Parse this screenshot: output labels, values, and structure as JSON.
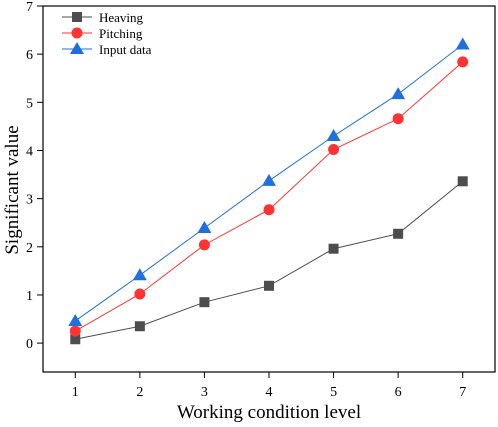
{
  "chart_data": {
    "type": "line",
    "x": [
      1,
      2,
      3,
      4,
      5,
      6,
      7
    ],
    "series": [
      {
        "name": "Heaving",
        "values": [
          0.08,
          0.35,
          0.85,
          1.19,
          1.96,
          2.27,
          3.36
        ],
        "color": "#4d4d4d",
        "marker": "square"
      },
      {
        "name": "Pitching",
        "values": [
          0.25,
          1.02,
          2.04,
          2.77,
          4.02,
          4.66,
          5.84
        ],
        "color": "#ff3333",
        "marker": "circle"
      },
      {
        "name": "Input data",
        "values": [
          0.46,
          1.41,
          2.39,
          3.37,
          4.3,
          5.17,
          6.2
        ],
        "color": "#1f6fdf",
        "marker": "triangle"
      }
    ],
    "xlabel": "Working condition level",
    "ylabel": "Significant value",
    "xlim": [
      0.5,
      7.5
    ],
    "ylim": [
      -0.6,
      7
    ],
    "xticks": [
      "1",
      "2",
      "3",
      "4",
      "5",
      "6",
      "7"
    ],
    "yticks": [
      "0",
      "1",
      "2",
      "3",
      "4",
      "5",
      "6",
      "7"
    ],
    "grid": false,
    "legend_position": "top-left"
  }
}
